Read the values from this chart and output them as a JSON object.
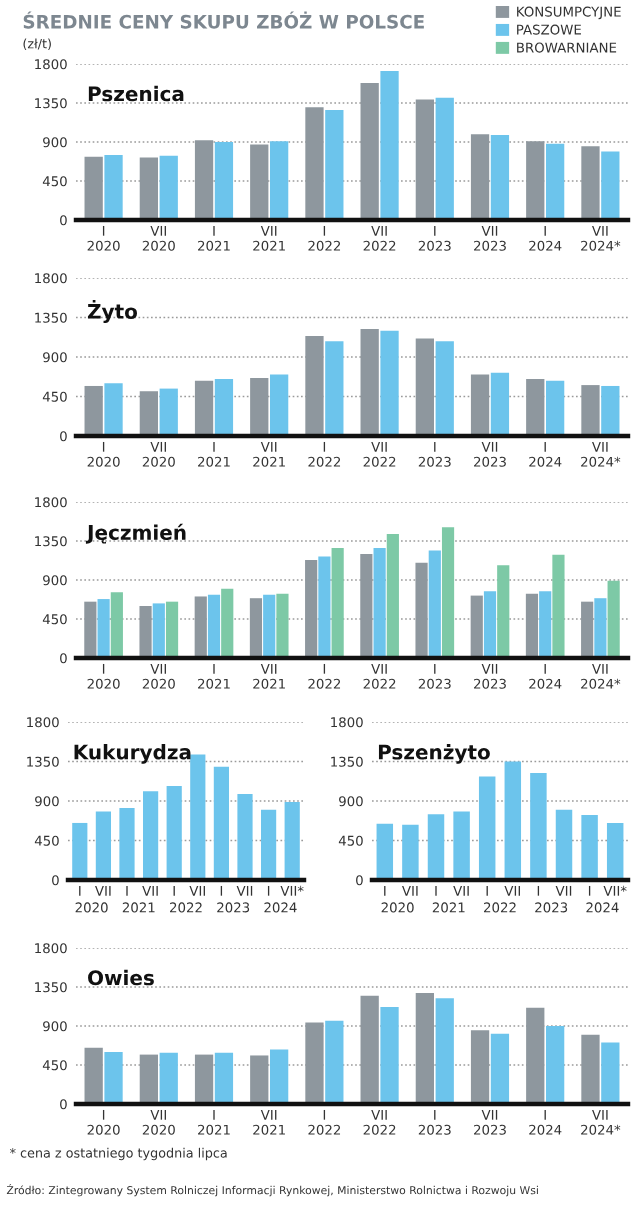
{
  "chart_data": [
    {
      "type": "bar",
      "title": "ŚREDNIE CENY SKUPU ZBÓŻ W POLSCE",
      "subtitle": "Pszenica",
      "ylabel": "(zł/t)",
      "legend": "top right",
      "grid": "y",
      "ylim": [
        0,
        1800
      ],
      "yticks": [
        0,
        450,
        900,
        1350,
        1800
      ],
      "categories": [
        "I\n2020",
        "VII\n2020",
        "I\n2021",
        "VII\n2021",
        "I\n2022",
        "VII\n2022",
        "I\n2023",
        "VII\n2023",
        "I\n2024",
        "VII\n2024*"
      ],
      "series": [
        {
          "name": "KONSUMPCYJNE",
          "color": "#8e979e",
          "values": [
            730,
            720,
            920,
            870,
            1300,
            1580,
            1390,
            990,
            910,
            850
          ]
        },
        {
          "name": "PASZOWE",
          "color": "#6cc4ec",
          "values": [
            750,
            740,
            900,
            910,
            1270,
            1720,
            1410,
            980,
            880,
            790
          ]
        }
      ]
    },
    {
      "type": "bar",
      "title": "Żyto",
      "grid": "y",
      "ylim": [
        0,
        1800
      ],
      "yticks": [
        0,
        450,
        900,
        1350,
        1800
      ],
      "categories": [
        "I\n2020",
        "VII\n2020",
        "I\n2021",
        "VII\n2021",
        "I\n2022",
        "VII\n2022",
        "I\n2023",
        "VII\n2023",
        "I\n2024",
        "VII\n2024*"
      ],
      "series": [
        {
          "name": "KONSUMPCYJNE",
          "color": "#8e979e",
          "values": [
            570,
            510,
            630,
            660,
            1140,
            1220,
            1110,
            700,
            650,
            580
          ]
        },
        {
          "name": "PASZOWE",
          "color": "#6cc4ec",
          "values": [
            600,
            540,
            650,
            700,
            1080,
            1200,
            1080,
            720,
            630,
            570
          ]
        }
      ]
    },
    {
      "type": "bar",
      "title": "Jęczmień",
      "grid": "y",
      "ylim": [
        0,
        1800
      ],
      "yticks": [
        0,
        450,
        900,
        1350,
        1800
      ],
      "categories": [
        "I\n2020",
        "VII\n2020",
        "I\n2021",
        "VII\n2021",
        "I\n2022",
        "VII\n2022",
        "I\n2023",
        "VII\n2023",
        "I\n2024",
        "VII\n2024*"
      ],
      "series": [
        {
          "name": "KONSUMPCYJNE",
          "color": "#8e979e",
          "values": [
            650,
            600,
            710,
            690,
            1130,
            1200,
            1100,
            720,
            740,
            650
          ]
        },
        {
          "name": "PASZOWE",
          "color": "#6cc4ec",
          "values": [
            680,
            630,
            730,
            730,
            1170,
            1270,
            1240,
            770,
            770,
            690
          ]
        },
        {
          "name": "BROWARNIANE",
          "color": "#7dc9a6",
          "values": [
            760,
            650,
            800,
            740,
            1270,
            1430,
            1510,
            1070,
            1190,
            890
          ]
        }
      ]
    },
    {
      "type": "bar",
      "title": "Kukurydza",
      "grid": "y",
      "ylim": [
        0,
        1800
      ],
      "yticks": [
        0,
        450,
        900,
        1350,
        1800
      ],
      "categories": [
        "I",
        "VII",
        "I",
        "VII",
        "I",
        "VII",
        "I",
        "VII",
        "I",
        "VII*"
      ],
      "annotations": [
        "2020",
        "2021",
        "2022",
        "2023",
        "2024"
      ],
      "series": [
        {
          "color": "#6cc4ec",
          "values": [
            650,
            780,
            820,
            1010,
            1070,
            1430,
            1290,
            980,
            800,
            890
          ]
        }
      ]
    },
    {
      "type": "bar",
      "title": "Pszenżyto",
      "grid": "y",
      "ylim": [
        0,
        1800
      ],
      "yticks": [
        0,
        450,
        900,
        1350,
        1800
      ],
      "categories": [
        "I",
        "VII",
        "I",
        "VII",
        "I",
        "VII",
        "I",
        "VII",
        "I",
        "VII*"
      ],
      "annotations": [
        "2020",
        "2021",
        "2022",
        "2023",
        "2024"
      ],
      "series": [
        {
          "color": "#6cc4ec",
          "values": [
            640,
            630,
            750,
            780,
            1180,
            1350,
            1220,
            800,
            740,
            650
          ]
        }
      ]
    },
    {
      "type": "bar",
      "title": "Owies",
      "grid": "y",
      "ylim": [
        0,
        1800
      ],
      "yticks": [
        0,
        450,
        900,
        1350,
        1800
      ],
      "categories": [
        "I\n2020",
        "VII\n2020",
        "I\n2021",
        "VII\n2021",
        "I\n2022",
        "VII\n2022",
        "I\n2023",
        "VII\n2023",
        "I\n2024",
        "VII\n2024*"
      ],
      "annotations": [
        "* cena z ostatniego tygodnia lipca",
        "Źródło: Zintegrowany System Rolniczej Informacji Rynkowej, Ministerstwo Rolnictwa i Rozwoju Wsi"
      ],
      "series": [
        {
          "name": "KONSUMPCYJNE",
          "color": "#8e979e",
          "values": [
            650,
            570,
            570,
            560,
            940,
            1250,
            1280,
            850,
            1110,
            800
          ]
        },
        {
          "name": "PASZOWE",
          "color": "#6cc4ec",
          "values": [
            600,
            590,
            590,
            630,
            960,
            1120,
            1220,
            810,
            900,
            710
          ]
        }
      ]
    }
  ]
}
